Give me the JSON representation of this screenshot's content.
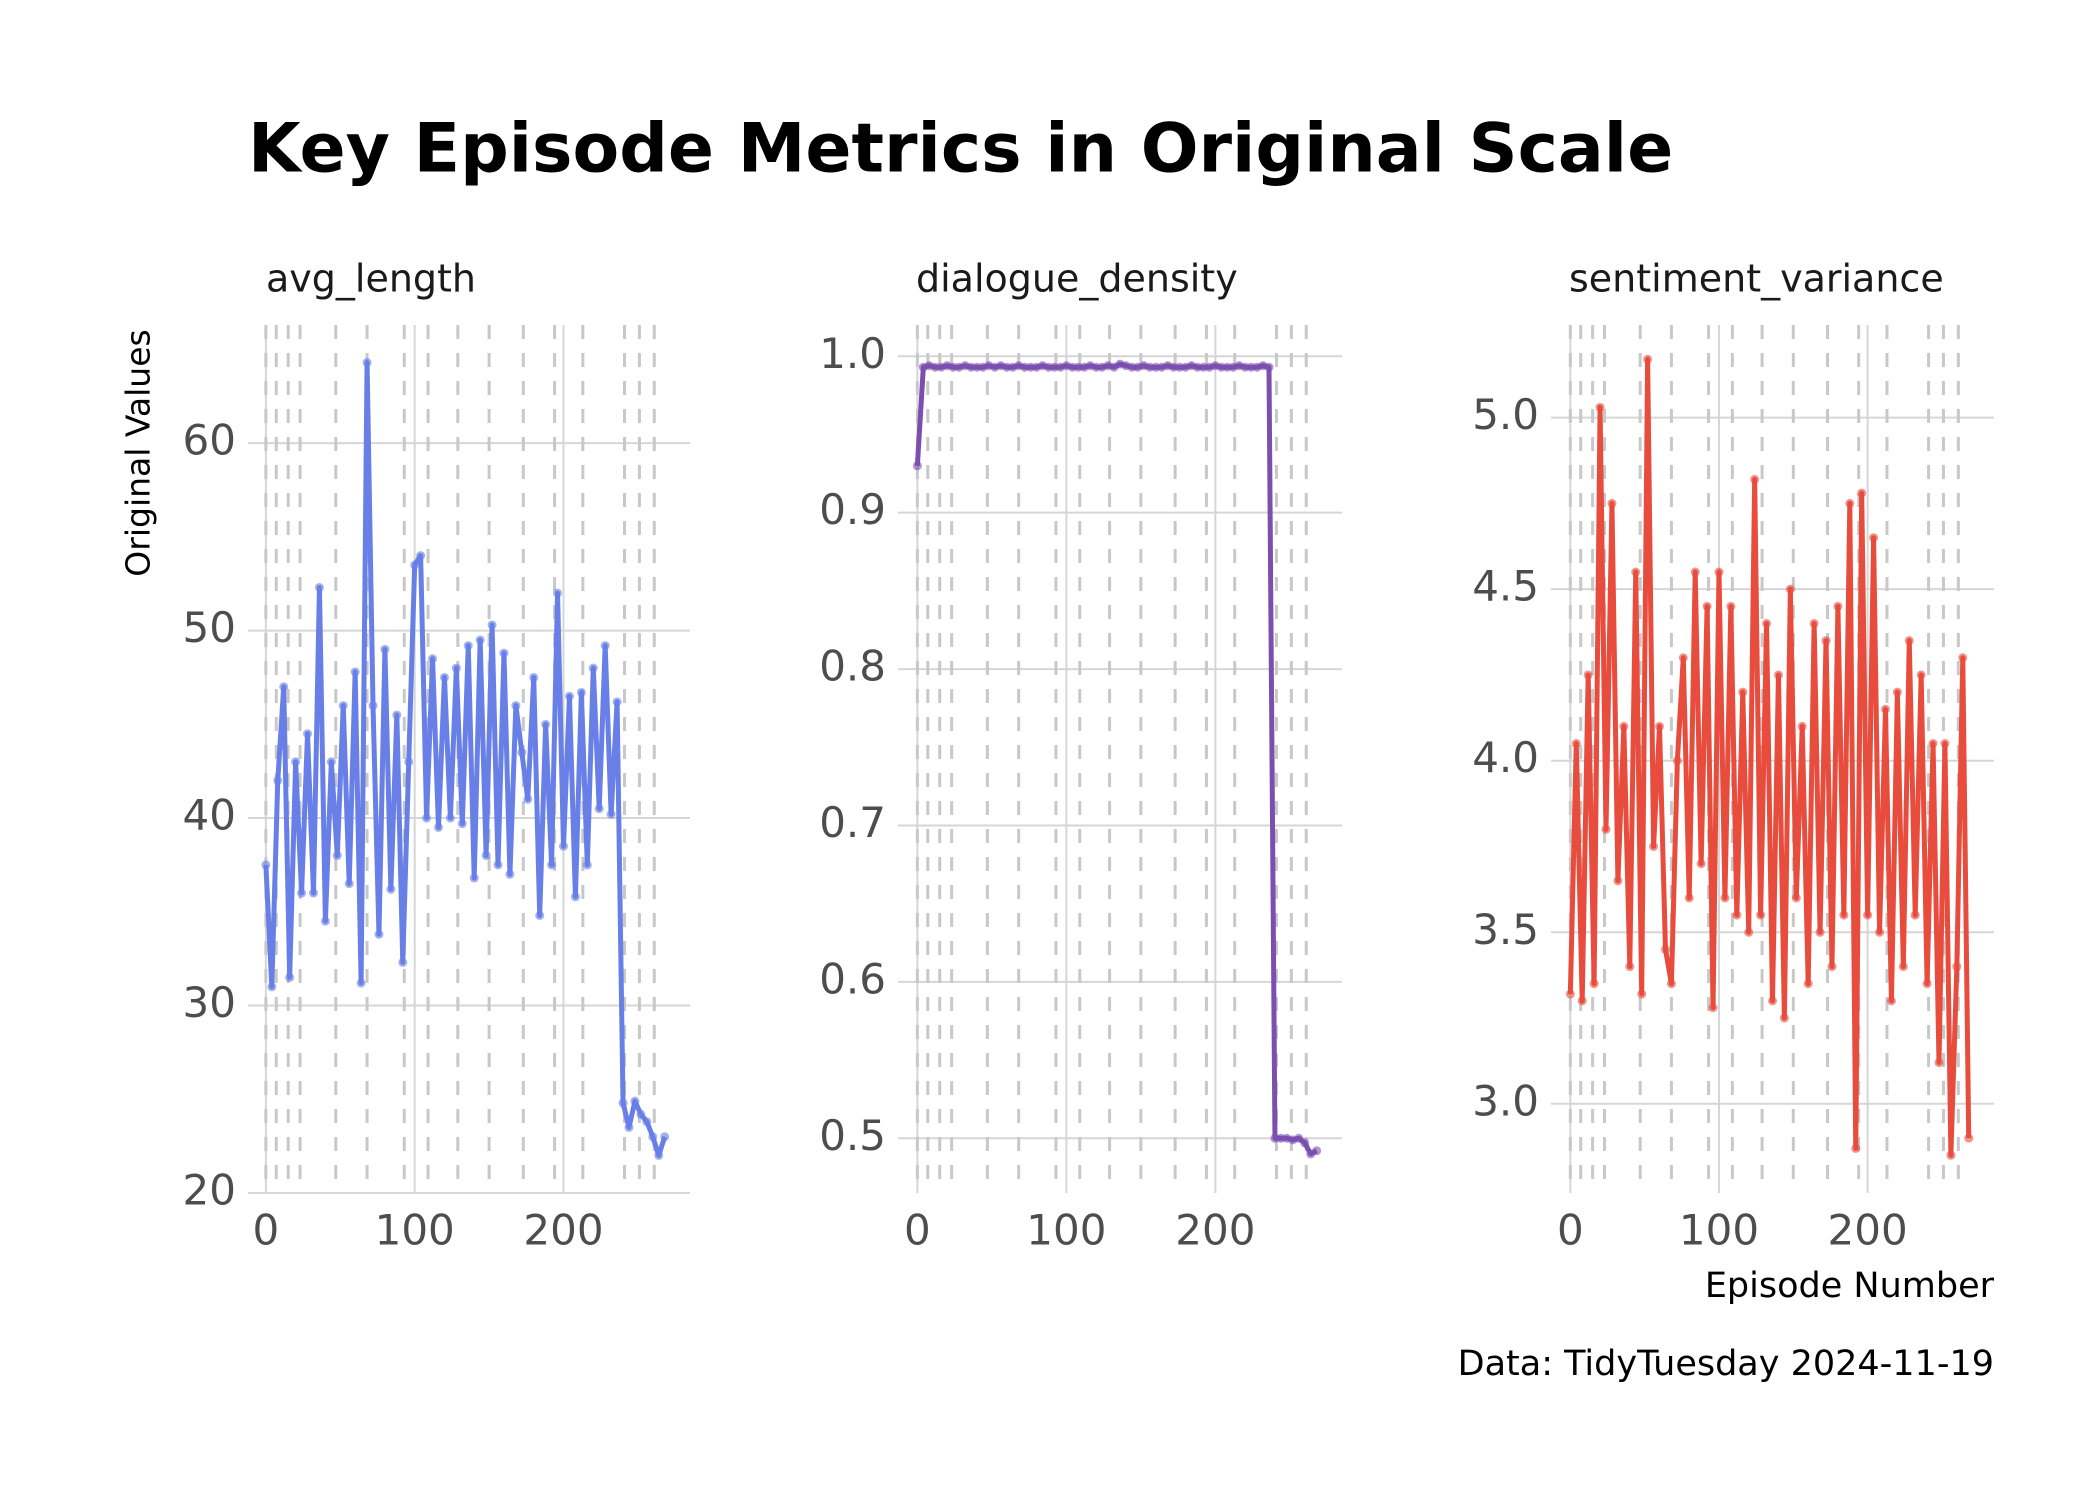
{
  "title": "Key Episode Metrics in Original Scale",
  "y_label": "Original Values",
  "x_label": "Episode Number",
  "caption": "Data: TidyTuesday 2024-11-19",
  "vlines": [
    0,
    7,
    15,
    23,
    47,
    68,
    93,
    109,
    129,
    150,
    173,
    194,
    213,
    241,
    251,
    261
  ],
  "chart_data": [
    {
      "type": "line",
      "title": "avg_length",
      "color": "#677fe6",
      "x": [
        0,
        4,
        8,
        12,
        16,
        20,
        24,
        28,
        32,
        36,
        40,
        44,
        48,
        52,
        56,
        60,
        64,
        68,
        72,
        76,
        80,
        84,
        88,
        92,
        96,
        100,
        104,
        108,
        112,
        116,
        120,
        124,
        128,
        132,
        136,
        140,
        144,
        148,
        152,
        156,
        160,
        164,
        168,
        172,
        176,
        180,
        184,
        188,
        192,
        196,
        200,
        204,
        208,
        212,
        216,
        220,
        224,
        228,
        232,
        236,
        240,
        244,
        248,
        252,
        256,
        260,
        264,
        268
      ],
      "values": [
        37.5,
        31,
        42,
        47,
        31.5,
        43,
        36,
        44.5,
        36,
        52.3,
        34.5,
        43,
        38,
        46,
        36.5,
        47.8,
        31.2,
        64.3,
        46,
        33.8,
        49,
        36.2,
        45.5,
        32.3,
        43,
        53.5,
        54,
        40,
        48.5,
        39.5,
        47.5,
        40,
        48,
        39.7,
        49.2,
        36.8,
        49.5,
        38,
        50.3,
        37.5,
        48.8,
        37,
        46,
        43.5,
        41,
        47.5,
        34.8,
        45,
        37.5,
        52,
        38.5,
        46.5,
        35.8,
        46.7,
        37.5,
        48,
        40.5,
        49.2,
        40.2,
        46.2,
        24.8,
        23.5,
        24.9,
        24.2,
        23.8,
        23,
        22,
        23
      ],
      "xlim": [
        -12,
        285
      ],
      "ylim": [
        20,
        66.3
      ],
      "xticks": [
        0,
        100,
        200
      ],
      "yticks": [
        20,
        30,
        40,
        50,
        60
      ]
    },
    {
      "type": "line",
      "title": "dialogue_density",
      "color": "#7b4fb0",
      "x": [
        0,
        4,
        8,
        12,
        16,
        20,
        24,
        28,
        32,
        36,
        40,
        44,
        48,
        52,
        56,
        60,
        64,
        68,
        72,
        76,
        80,
        84,
        88,
        92,
        96,
        100,
        104,
        108,
        112,
        116,
        120,
        124,
        128,
        132,
        136,
        140,
        144,
        148,
        152,
        156,
        160,
        164,
        168,
        172,
        176,
        180,
        184,
        188,
        192,
        196,
        200,
        204,
        208,
        212,
        216,
        220,
        224,
        228,
        232,
        236,
        240,
        244,
        248,
        252,
        256,
        260,
        264,
        268
      ],
      "values": [
        0.93,
        0.993,
        0.994,
        0.993,
        0.993,
        0.994,
        0.993,
        0.993,
        0.994,
        0.993,
        0.993,
        0.993,
        0.994,
        0.993,
        0.994,
        0.993,
        0.993,
        0.994,
        0.993,
        0.993,
        0.993,
        0.994,
        0.993,
        0.993,
        0.993,
        0.994,
        0.993,
        0.993,
        0.993,
        0.994,
        0.993,
        0.993,
        0.994,
        0.993,
        0.995,
        0.994,
        0.993,
        0.993,
        0.994,
        0.993,
        0.993,
        0.993,
        0.994,
        0.993,
        0.993,
        0.993,
        0.994,
        0.993,
        0.993,
        0.993,
        0.994,
        0.993,
        0.993,
        0.993,
        0.994,
        0.993,
        0.993,
        0.993,
        0.994,
        0.993,
        0.5,
        0.5,
        0.5,
        0.499,
        0.5,
        0.497,
        0.49,
        0.492
      ],
      "xlim": [
        -13,
        285
      ],
      "ylim": [
        0.465,
        1.02
      ],
      "xticks": [
        0,
        100,
        200
      ],
      "yticks": [
        0.5,
        0.6,
        0.7,
        0.8,
        0.9,
        {
          "value": 1,
          "label": "1.0"
        }
      ]
    },
    {
      "type": "line",
      "title": "sentiment_variance",
      "color": "#e84c3d",
      "x": [
        0,
        4,
        8,
        12,
        16,
        20,
        24,
        28,
        32,
        36,
        40,
        44,
        48,
        52,
        56,
        60,
        64,
        68,
        72,
        76,
        80,
        84,
        88,
        92,
        96,
        100,
        104,
        108,
        112,
        116,
        120,
        124,
        128,
        132,
        136,
        140,
        144,
        148,
        152,
        156,
        160,
        164,
        168,
        172,
        176,
        180,
        184,
        188,
        192,
        196,
        200,
        204,
        208,
        212,
        216,
        220,
        224,
        228,
        232,
        236,
        240,
        244,
        248,
        252,
        256,
        260,
        264,
        268
      ],
      "values": [
        3.32,
        4.05,
        3.3,
        4.25,
        3.35,
        5.03,
        3.8,
        4.75,
        3.65,
        4.1,
        3.4,
        4.55,
        3.32,
        5.17,
        3.75,
        4.1,
        3.45,
        3.35,
        4.0,
        4.3,
        3.6,
        4.55,
        3.7,
        4.45,
        3.28,
        4.55,
        3.6,
        4.45,
        3.55,
        4.2,
        3.5,
        4.82,
        3.55,
        4.4,
        3.3,
        4.25,
        3.25,
        4.5,
        3.6,
        4.1,
        3.35,
        4.4,
        3.5,
        4.35,
        3.4,
        4.45,
        3.55,
        4.75,
        2.87,
        4.78,
        3.55,
        4.65,
        3.5,
        4.15,
        3.3,
        4.2,
        3.4,
        4.35,
        3.55,
        4.25,
        3.35,
        4.05,
        3.12,
        4.05,
        2.85,
        3.4,
        4.3,
        2.9
      ],
      "xlim": [
        -13,
        285
      ],
      "ylim": [
        2.74,
        5.27
      ],
      "xticks": [
        0,
        100,
        200
      ],
      "yticks": [
        {
          "value": 3,
          "label": "3.0"
        },
        3.5,
        {
          "value": 4,
          "label": "4.0"
        },
        4.5,
        {
          "value": 5,
          "label": "5.0"
        }
      ]
    }
  ]
}
